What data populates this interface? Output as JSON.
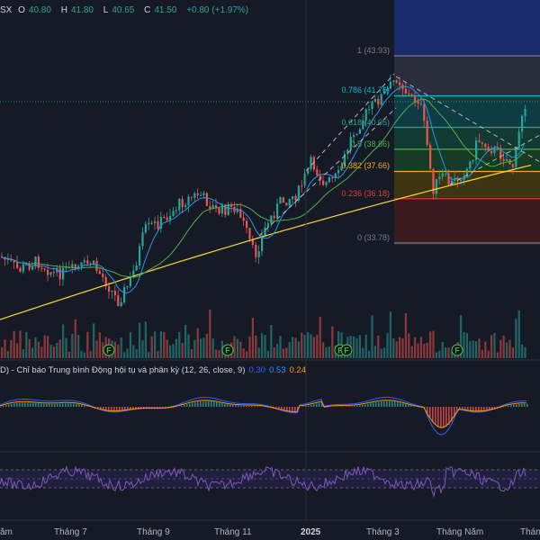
{
  "ohlc": {
    "symbol_fragment": "SX",
    "open_label": "O",
    "open": "40.80",
    "high_label": "H",
    "high": "41.80",
    "low_label": "L",
    "low": "40.65",
    "close_label": "C",
    "close": "41.50",
    "change": "+0.80 (+1.97%)"
  },
  "fib_levels": [
    {
      "label": "1 (43.93)",
      "price": 43.93,
      "color": "#787b86",
      "fill": "#2a2e39"
    },
    {
      "label": "0.786 (41.76)",
      "price": 41.76,
      "color": "#00bcd4",
      "fill": "#0f3c44"
    },
    {
      "label": "0.618 (40.05)",
      "price": 40.05,
      "color": "#26a69a",
      "fill": "#123a33"
    },
    {
      "label": "0.5 (38.86)",
      "price": 38.86,
      "color": "#4caf50",
      "fill": "#173a25"
    },
    {
      "label": "0.382 (37.66)",
      "price": 37.66,
      "color": "#f9a825",
      "fill": "#3d3410"
    },
    {
      "label": "0.236 (36.18)",
      "price": 36.18,
      "color": "#e53935",
      "fill": "#3b1a1d"
    },
    {
      "label": "0 (33.78)",
      "price": 33.78,
      "color": "#787b86",
      "fill": "#24262e"
    }
  ],
  "macd": {
    "title": "D) - Chỉ báo Trung bình Động hội tụ và phân kỳ (12, 26, close, 9)",
    "v1": "0.30",
    "v2": "0.53",
    "v3": "0.24"
  },
  "markers": [
    "F",
    "F",
    "F",
    "F",
    "F"
  ],
  "x_axis": [
    "ăm",
    "Tháng 7",
    "Tháng 9",
    "Tháng 11",
    "2025",
    "Tháng 3",
    "Tháng Năm",
    "Thán"
  ],
  "colors": {
    "up": "#26a69a",
    "down": "#ef5350",
    "ma_fast": "#2196f3",
    "ma_mid": "#4caf50",
    "ma_slow": "#fdd835",
    "background": "#161a25"
  }
}
